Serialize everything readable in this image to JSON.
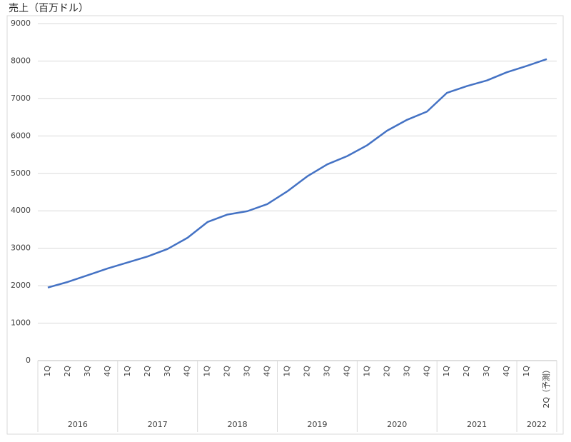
{
  "chart_data": {
    "type": "line",
    "title": "売上（百万ドル）",
    "categories": [
      "1Q",
      "2Q",
      "3Q",
      "4Q",
      "1Q",
      "2Q",
      "3Q",
      "4Q",
      "1Q",
      "2Q",
      "3Q",
      "4Q",
      "1Q",
      "2Q",
      "3Q",
      "4Q",
      "1Q",
      "2Q",
      "3Q",
      "4Q",
      "1Q",
      "2Q",
      "3Q",
      "4Q",
      "1Q",
      "2Q（予測）"
    ],
    "category_groups": [
      {
        "label": "2016",
        "span": 4
      },
      {
        "label": "2017",
        "span": 4
      },
      {
        "label": "2018",
        "span": 4
      },
      {
        "label": "2019",
        "span": 4
      },
      {
        "label": "2020",
        "span": 4
      },
      {
        "label": "2021",
        "span": 4
      },
      {
        "label": "2022",
        "span": 2
      }
    ],
    "series": [
      {
        "color": "#4472c4",
        "values": [
          1950,
          2100,
          2280,
          2460,
          2620,
          2780,
          2980,
          3280,
          3700,
          3900,
          3990,
          4180,
          4520,
          4920,
          5240,
          5460,
          5750,
          6140,
          6430,
          6650,
          7150,
          7330,
          7480,
          7700,
          7870,
          8050
        ]
      }
    ],
    "ylim": [
      0,
      9000
    ],
    "yticks": [
      0,
      1000,
      2000,
      3000,
      4000,
      5000,
      6000,
      7000,
      8000,
      9000
    ],
    "grid": true
  }
}
